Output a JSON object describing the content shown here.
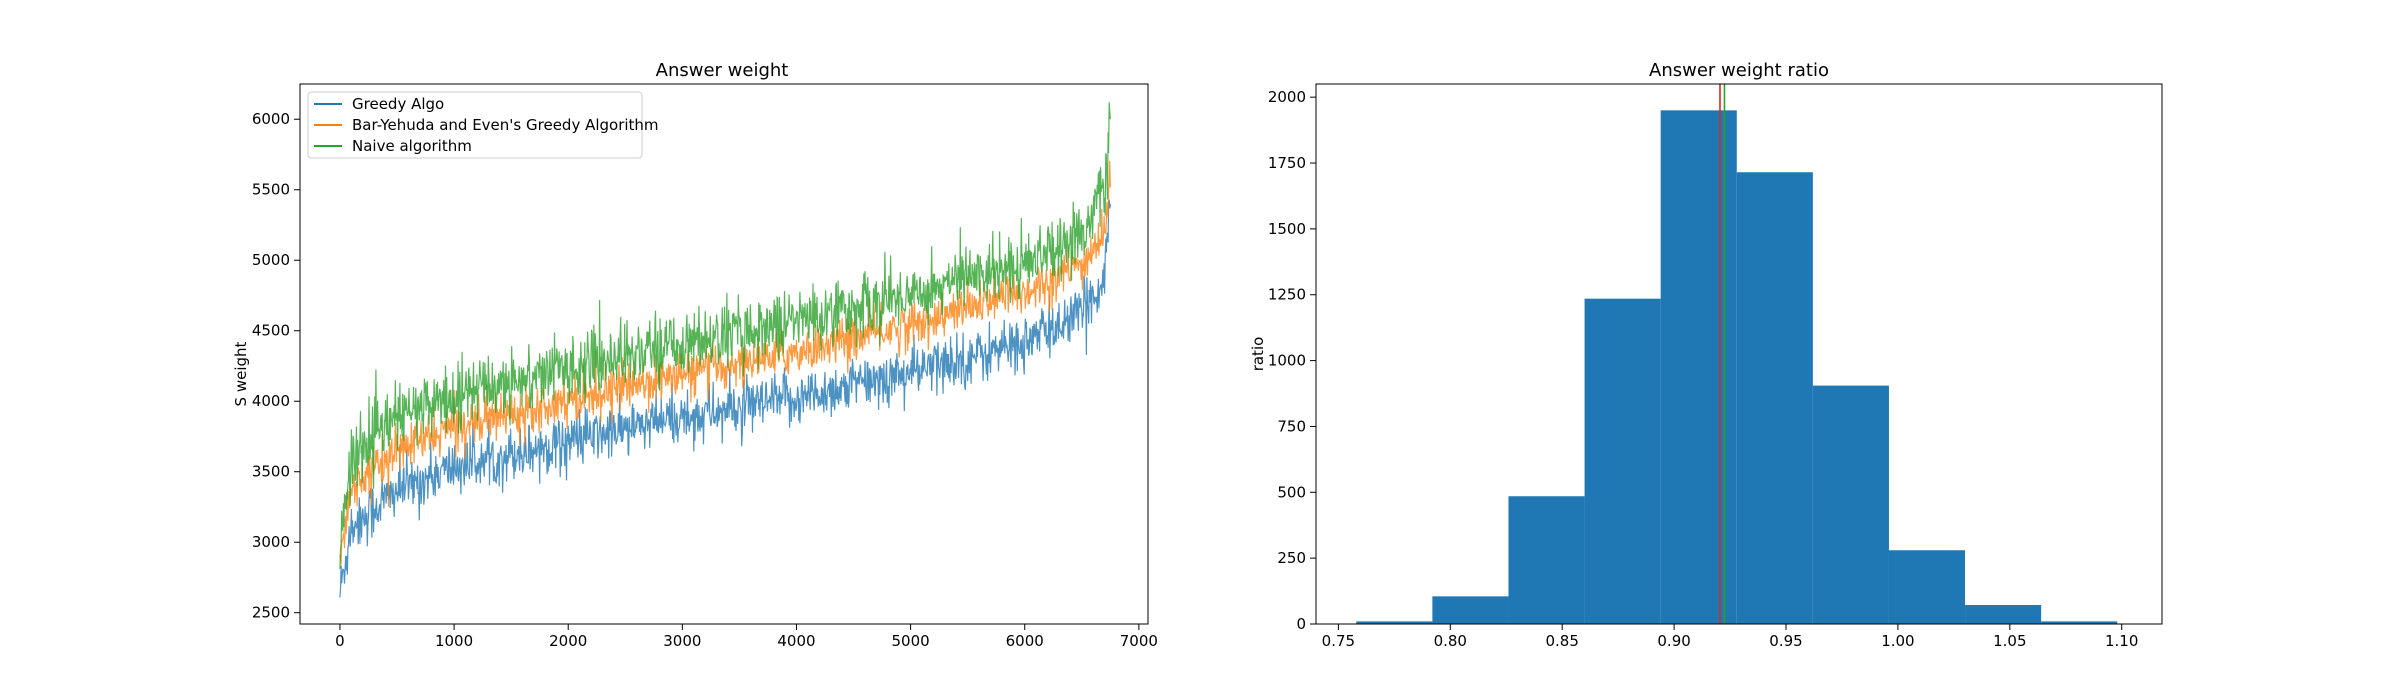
{
  "chart_data": [
    {
      "type": "line",
      "title": "Answer weight",
      "xlabel": "",
      "ylabel": "S weight",
      "xlim": [
        -350,
        7080
      ],
      "ylim": [
        2420,
        6250
      ],
      "x_ticks": [
        0,
        1000,
        2000,
        3000,
        4000,
        5000,
        6000,
        7000
      ],
      "y_ticks": [
        2500,
        3000,
        3500,
        4000,
        4500,
        5000,
        5500,
        6000
      ],
      "x_domain": [
        0,
        6750
      ],
      "legend": "top-left",
      "grid": false,
      "series": [
        {
          "name": "Greedy Algo",
          "color": "#1f77b4",
          "trend": [
            [
              0,
              2640
            ],
            [
              100,
              3120
            ],
            [
              500,
              3370
            ],
            [
              1000,
              3530
            ],
            [
              2000,
              3720
            ],
            [
              3000,
              3880
            ],
            [
              4000,
              4020
            ],
            [
              5000,
              4200
            ],
            [
              6000,
              4420
            ],
            [
              6500,
              4620
            ],
            [
              6700,
              4900
            ],
            [
              6750,
              5450
            ]
          ],
          "noise": 120
        },
        {
          "name": "Bar-Yehuda and Even's Greedy Algorithm",
          "color": "#ff7f0e",
          "trend": [
            [
              0,
              2880
            ],
            [
              100,
              3400
            ],
            [
              500,
              3650
            ],
            [
              1000,
              3820
            ],
            [
              2000,
              4020
            ],
            [
              3000,
              4190
            ],
            [
              4000,
              4350
            ],
            [
              5000,
              4540
            ],
            [
              6000,
              4780
            ],
            [
              6500,
              4960
            ],
            [
              6700,
              5200
            ],
            [
              6750,
              5560
            ]
          ],
          "noise": 100
        },
        {
          "name": "Naive algorithm",
          "color": "#2ca02c",
          "trend": [
            [
              0,
              2960
            ],
            [
              100,
              3600
            ],
            [
              500,
              3880
            ],
            [
              1000,
              4050
            ],
            [
              2000,
              4240
            ],
            [
              3000,
              4410
            ],
            [
              4000,
              4570
            ],
            [
              5000,
              4760
            ],
            [
              6000,
              5000
            ],
            [
              6500,
              5200
            ],
            [
              6700,
              5500
            ],
            [
              6750,
              6000
            ]
          ],
          "noise": 140
        }
      ]
    },
    {
      "type": "histogram",
      "title": "Answer weight ratio",
      "xlabel": "",
      "ylabel": "ratio",
      "xlim": [
        0.74,
        1.118
      ],
      "ylim": [
        0,
        2050
      ],
      "x_ticks": [
        "0.75",
        "0.80",
        "0.85",
        "0.90",
        "0.95",
        "1.00",
        "1.05",
        "1.10"
      ],
      "y_ticks": [
        0,
        250,
        500,
        750,
        1000,
        1250,
        1500,
        1750,
        2000
      ],
      "color": "#1f77b4",
      "grid": false,
      "bins": [
        {
          "x0": 0.758,
          "x1": 0.792,
          "count": 10
        },
        {
          "x0": 0.792,
          "x1": 0.826,
          "count": 105
        },
        {
          "x0": 0.826,
          "x1": 0.86,
          "count": 485
        },
        {
          "x0": 0.86,
          "x1": 0.894,
          "count": 1235
        },
        {
          "x0": 0.894,
          "x1": 0.928,
          "count": 1950
        },
        {
          "x0": 0.928,
          "x1": 0.962,
          "count": 1715
        },
        {
          "x0": 0.962,
          "x1": 0.996,
          "count": 905
        },
        {
          "x0": 0.996,
          "x1": 1.03,
          "count": 280
        },
        {
          "x0": 1.03,
          "x1": 1.064,
          "count": 72
        },
        {
          "x0": 1.064,
          "x1": 1.098,
          "count": 10
        }
      ],
      "vlines": [
        {
          "x": 0.9205,
          "color": "#d62728"
        },
        {
          "x": 0.9225,
          "color": "#2ca02c"
        }
      ]
    }
  ]
}
